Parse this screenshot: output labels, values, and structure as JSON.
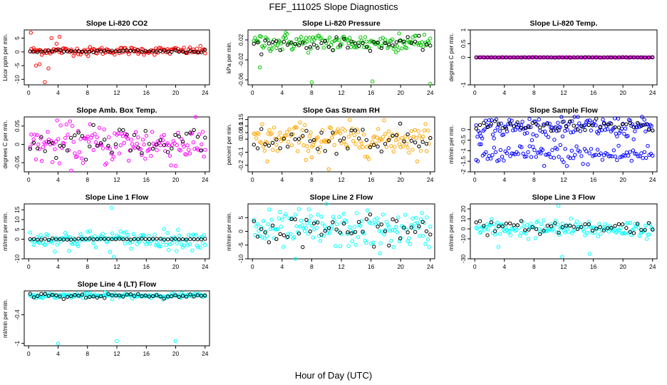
{
  "figure": {
    "title": "FEF_111025  Slope Diagnostics",
    "xlabel": "Hour of Day (UTC)"
  },
  "chart_data": [
    {
      "type": "scatter",
      "title": "Slope Li-820 CO2",
      "ylabel": "Licor ppm per min.",
      "xlim": [
        -0.6,
        24.6
      ],
      "ylim": [
        -12,
        8
      ],
      "yticks": [
        -10,
        -5,
        0,
        5
      ],
      "xticks": [
        0,
        4,
        8,
        12,
        16,
        20,
        24
      ],
      "primary": {
        "color": "#ff0000",
        "center": 0.4,
        "spread": 0.7
      },
      "reference": {
        "color": "#000000",
        "center": 0.2,
        "spread": 0.25
      },
      "outliers": [
        [
          0.3,
          7
        ],
        [
          2.2,
          -11
        ],
        [
          1.5,
          -4.5
        ],
        [
          3.1,
          5
        ],
        [
          4.2,
          5.5
        ],
        [
          1.0,
          -5
        ],
        [
          2.7,
          -6
        ],
        [
          3.8,
          3
        ],
        [
          8.1,
          -1.5
        ]
      ]
    },
    {
      "type": "scatter",
      "title": "Slope Li-820 Pressure",
      "ylabel": "kPa per min.",
      "xlim": [
        -0.6,
        24.6
      ],
      "ylim": [
        -0.07,
        0.04
      ],
      "yticks": [
        -0.06,
        -0.02,
        0.02
      ],
      "xticks": [
        0,
        4,
        8,
        12,
        16,
        20,
        24
      ],
      "primary": {
        "color": "#00c000",
        "center": 0.015,
        "spread": 0.009
      },
      "reference": {
        "color": "#000000",
        "center": 0.012,
        "spread": 0.006
      },
      "outliers": [
        [
          1.0,
          -0.035
        ],
        [
          8.0,
          -0.065
        ],
        [
          16.2,
          -0.063
        ],
        [
          24.0,
          -0.068
        ],
        [
          4.5,
          0.035
        ],
        [
          19.8,
          0.033
        ]
      ]
    },
    {
      "type": "scatter",
      "title": "Slope Li-820 Temp.",
      "ylabel": "degrees C per min.",
      "xlim": [
        -0.6,
        24.6
      ],
      "ylim": [
        -1.0,
        1.0
      ],
      "yticks": [
        -1.0,
        0.0,
        0.5,
        1.0
      ],
      "xticks": [
        0,
        4,
        8,
        12,
        16,
        20,
        24
      ],
      "primary": {
        "color": "#ff00ff",
        "center": 0.0,
        "spread": 0.004
      },
      "reference": {
        "color": "#000000",
        "center": 0.0,
        "spread": 0.003
      },
      "outliers": []
    },
    {
      "type": "scatter",
      "title": "Slope Amb. Box Temp.",
      "ylabel": "degrees C per min.",
      "xlim": [
        -0.6,
        24.6
      ],
      "ylim": [
        -0.075,
        0.075
      ],
      "yticks": [
        -0.05,
        0.0,
        0.05
      ],
      "xticks": [
        0,
        4,
        8,
        12,
        16,
        20,
        24
      ],
      "primary": {
        "color": "#ff00ff",
        "center": 0.0,
        "spread": 0.028
      },
      "reference": {
        "color": "#000000",
        "center": 0.0,
        "spread": 0.025
      },
      "outliers": []
    },
    {
      "type": "scatter",
      "title": "Slope Gas Stream RH",
      "ylabel": "percent per min.",
      "xlim": [
        -0.6,
        24.6
      ],
      "ylim": [
        -0.25,
        0.17
      ],
      "yticks": [
        -0.2,
        -0.1,
        0.0,
        0.05,
        0.1,
        0.15
      ],
      "xticks": [
        0,
        4,
        8,
        12,
        16,
        20,
        24
      ],
      "primary": {
        "color": "#ffa500",
        "center": 0.0,
        "spread": 0.06
      },
      "reference": {
        "color": "#000000",
        "center": 0.0,
        "spread": 0.05
      },
      "outliers": [
        [
          10.3,
          -0.23
        ],
        [
          2.0,
          -0.17
        ],
        [
          8.0,
          -0.14
        ]
      ]
    },
    {
      "type": "scatter",
      "title": "Slope Sample Flow",
      "ylabel": "ml/min per min.",
      "xlim": [
        -0.6,
        24.6
      ],
      "ylim": [
        -2.0,
        0.6
      ],
      "yticks": [
        -2.0,
        -1.5,
        -1.0,
        -0.5,
        0.0
      ],
      "xticks": [
        0,
        4,
        8,
        12,
        16,
        20,
        24
      ],
      "primary": {
        "color": "#0000ff",
        "center": 0.1,
        "spread": 0.25
      },
      "secondary": {
        "color": "#0000ff",
        "center": -1.2,
        "spread": 0.25
      },
      "reference": {
        "color": "#000000",
        "center": 0.2,
        "spread": 0.15
      },
      "outliers": []
    },
    {
      "type": "scatter",
      "title": "Slope Line 1 Flow",
      "ylabel": "ml/min per min.",
      "xlim": [
        -0.6,
        24.6
      ],
      "ylim": [
        -10,
        18
      ],
      "yticks": [
        -10,
        0,
        5,
        10,
        15
      ],
      "xticks": [
        0,
        4,
        8,
        12,
        16,
        20,
        24
      ],
      "primary": {
        "color": "#00ffff",
        "center": 0.0,
        "spread": 2.2
      },
      "reference": {
        "color": "#000000",
        "center": 0.0,
        "spread": 0.2
      },
      "outliers": [
        [
          11.3,
          16
        ],
        [
          11.6,
          -9
        ],
        [
          5.5,
          -6
        ],
        [
          20.1,
          -6
        ]
      ]
    },
    {
      "type": "scatter",
      "title": "Slope Line 2 Flow",
      "ylabel": "ml/min per min.",
      "xlim": [
        -0.6,
        24.6
      ],
      "ylim": [
        -10,
        10
      ],
      "yticks": [
        -10,
        -5,
        0,
        5
      ],
      "xticks": [
        0,
        4,
        8,
        12,
        16,
        20,
        24
      ],
      "primary": {
        "color": "#00ffff",
        "center": 0.5,
        "spread": 3.2
      },
      "reference": {
        "color": "#000000",
        "center": 0.5,
        "spread": 2.8
      },
      "outliers": [
        [
          10.0,
          10
        ],
        [
          5.8,
          -10
        ],
        [
          7.6,
          8
        ],
        [
          17.2,
          -8
        ]
      ]
    },
    {
      "type": "scatter",
      "title": "Slope Line 3 Flow",
      "ylabel": "ml/min per min.",
      "xlim": [
        -0.6,
        24.6
      ],
      "ylim": [
        -30,
        25
      ],
      "yticks": [
        -30,
        -10,
        0,
        10,
        20
      ],
      "xticks": [
        0,
        4,
        8,
        12,
        16,
        20,
        24
      ],
      "primary": {
        "color": "#00ffff",
        "center": 0.0,
        "spread": 4.5
      },
      "reference": {
        "color": "#000000",
        "center": 1.5,
        "spread": 3.0
      },
      "outliers": [
        [
          11.3,
          23
        ],
        [
          11.8,
          -28
        ],
        [
          15.5,
          -25
        ],
        [
          3.2,
          -18
        ]
      ]
    },
    {
      "type": "scatter",
      "title": "Slope Line 4 (LT) Flow",
      "ylabel": "ml/min per min.",
      "xlim": [
        -0.6,
        24.6
      ],
      "ylim": [
        -1.05,
        0.1
      ],
      "yticks": [
        -1.0,
        -0.4
      ],
      "xticks": [
        0,
        4,
        8,
        12,
        16,
        20,
        24
      ],
      "primary": {
        "color": "#00ffff",
        "center": 0.0,
        "spread": 0.025
      },
      "reference": {
        "color": "#000000",
        "center": -0.005,
        "spread": 0.025
      },
      "outliers": [
        [
          4.0,
          -1.0
        ],
        [
          12.0,
          -0.95
        ],
        [
          20.0,
          -0.95
        ]
      ]
    }
  ]
}
